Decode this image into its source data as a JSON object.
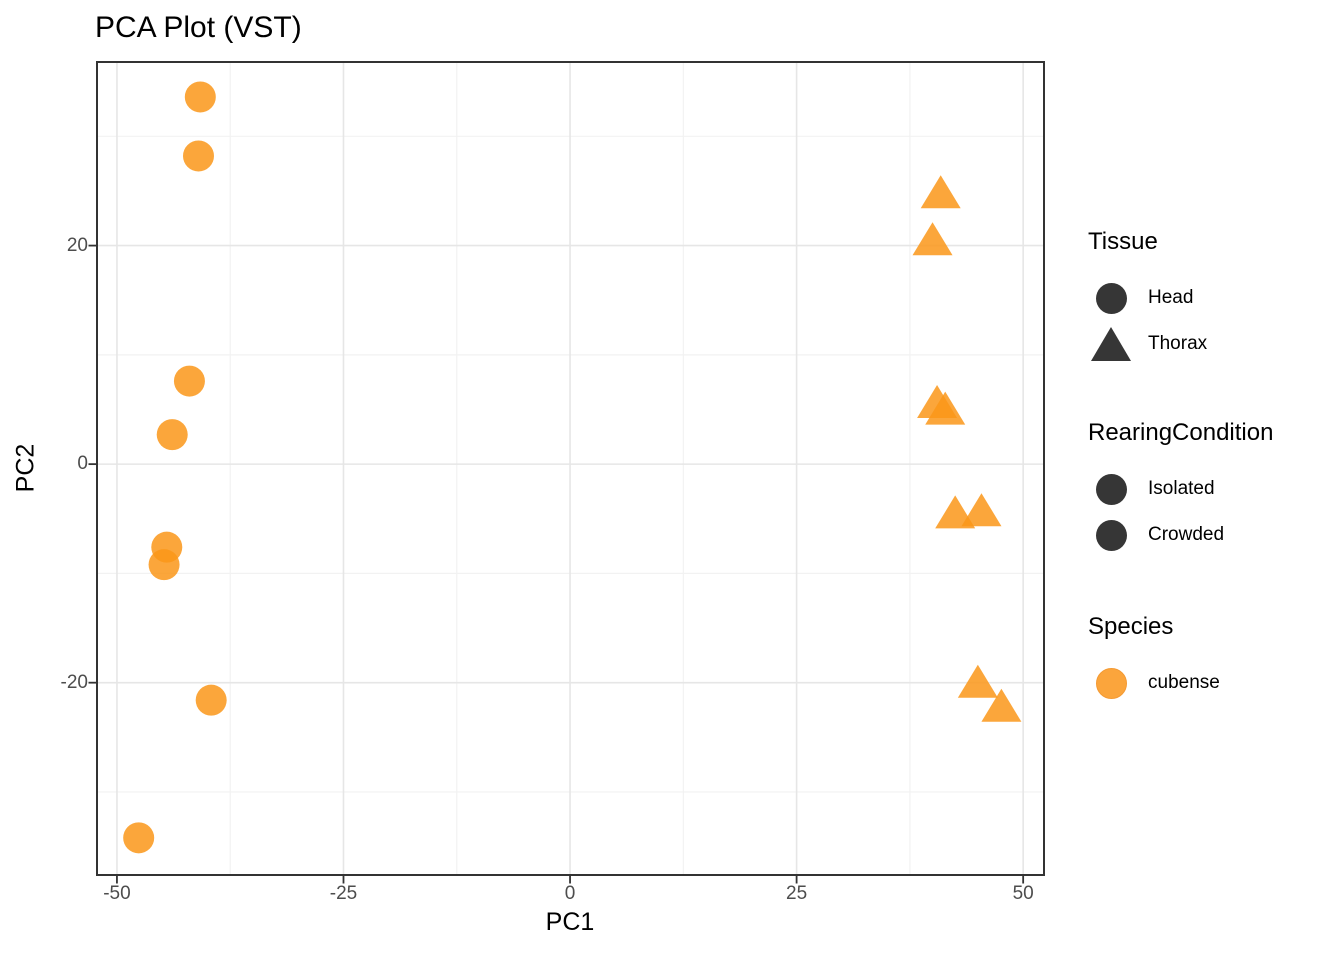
{
  "title": "PCA Plot (VST)",
  "axes": {
    "x_label": "PC1",
    "y_label": "PC2"
  },
  "legend": {
    "groups": [
      {
        "title": "Tissue",
        "items": [
          {
            "label": "Head",
            "glyph": "circle-dark"
          },
          {
            "label": "Thorax",
            "glyph": "triangle-dark"
          }
        ]
      },
      {
        "title": "RearingCondition",
        "items": [
          {
            "label": "Isolated",
            "glyph": "circle-dark"
          },
          {
            "label": "Crowded",
            "glyph": "circle-dark"
          }
        ]
      },
      {
        "title": "Species",
        "items": [
          {
            "label": "cubense",
            "glyph": "circle-orange"
          }
        ]
      }
    ]
  },
  "colors": {
    "point_fill": "#FA9619",
    "point_opacity": 0.85,
    "legend_dark": "#363636",
    "legend_orange": "#FBA53C",
    "grid_major": "#E6E6E6",
    "grid_minor": "#F2F2F2",
    "panel_border": "#333333",
    "tick_color": "#333333",
    "tick_label_color": "#4D4D4D",
    "background": "#FFFFFF"
  },
  "chart_data": {
    "type": "scatter",
    "title": "PCA Plot (VST)",
    "xlabel": "PC1",
    "ylabel": "PC2",
    "xlim": [
      -52.2,
      52.3
    ],
    "ylim": [
      -37.6,
      36.8
    ],
    "x_major_ticks": [
      -50,
      -25,
      0,
      25,
      50
    ],
    "y_major_ticks": [
      -20,
      0,
      20
    ],
    "x_minor_gridlines": [
      -37.5,
      -12.5,
      12.5,
      37.5
    ],
    "y_minor_gridlines": [
      -30,
      -10,
      10,
      30
    ],
    "grid": true,
    "legend_position": "right",
    "point_shape_by": "Tissue",
    "point_color_by": "Species",
    "series": [
      {
        "name": "Head",
        "shape": "circle",
        "species": "cubense",
        "points": [
          [
            -40.8,
            33.6
          ],
          [
            -41.0,
            28.2
          ],
          [
            -42.0,
            7.6
          ],
          [
            -43.9,
            2.7
          ],
          [
            -44.5,
            -7.6
          ],
          [
            -44.8,
            -9.2
          ],
          [
            -39.6,
            -21.6
          ],
          [
            -47.6,
            -34.2
          ]
        ]
      },
      {
        "name": "Thorax",
        "shape": "triangle",
        "species": "cubense",
        "points": [
          [
            40.9,
            24.7
          ],
          [
            40.0,
            20.4
          ],
          [
            40.5,
            5.5
          ],
          [
            41.4,
            4.9
          ],
          [
            42.5,
            -4.6
          ],
          [
            45.4,
            -4.4
          ],
          [
            45.0,
            -20.1
          ],
          [
            47.6,
            -22.3
          ]
        ]
      }
    ]
  }
}
